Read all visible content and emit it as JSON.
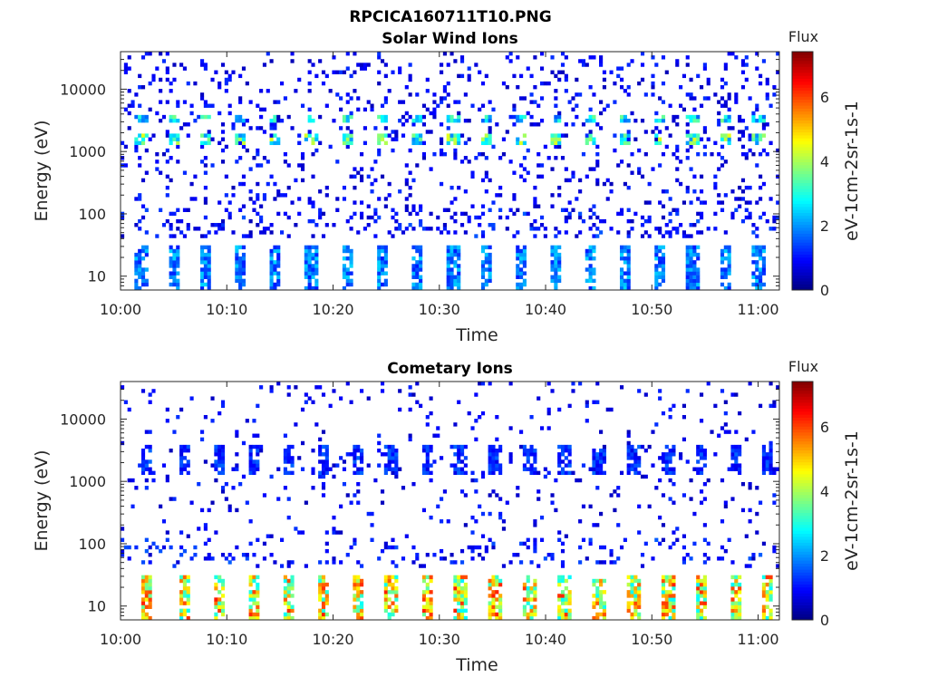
{
  "figure_title": "RPCICA160711T10.PNG",
  "chart_data": [
    {
      "type": "heatmap",
      "title": "Solar Wind Ions",
      "xlabel": "Time",
      "ylabel": "Energy (eV)",
      "x_ticks": [
        "10:00",
        "10:10",
        "10:20",
        "10:30",
        "10:40",
        "10:50",
        "11:00"
      ],
      "y_ticks": [
        10,
        100,
        1000,
        10000
      ],
      "y_scale": "log",
      "ylim": [
        6,
        40000
      ],
      "xlim_minutes": [
        0,
        62
      ],
      "colorbar": {
        "title": "Flux",
        "label": "eV-1cm-2sr-1s-1",
        "ticks": [
          0,
          2,
          4,
          6
        ],
        "range": [
          0,
          7.4
        ]
      },
      "pattern": {
        "energy_bands": [
          {
            "energy_min": 6,
            "energy_max": 30,
            "level": 1.8
          },
          {
            "energy_min": 1200,
            "energy_max": 2000,
            "level": 3.2
          },
          {
            "energy_min": 2800,
            "energy_max": 4000,
            "level": 2.6
          }
        ],
        "burst_times_min": [
          2,
          5,
          8,
          11.3,
          14.5,
          18,
          21.3,
          24.7,
          28,
          31.3,
          34.5,
          37.7,
          41,
          44.2,
          47.5,
          50.7,
          53.8,
          57,
          60
        ],
        "background_level": 1.0
      }
    },
    {
      "type": "heatmap",
      "title": "Cometary Ions",
      "xlabel": "Time",
      "ylabel": "Energy (eV)",
      "x_ticks": [
        "10:00",
        "10:10",
        "10:20",
        "10:30",
        "10:40",
        "10:50",
        "11:00"
      ],
      "y_ticks": [
        10,
        100,
        1000,
        10000
      ],
      "y_scale": "log",
      "ylim": [
        6,
        40000
      ],
      "xlim_minutes": [
        0,
        62
      ],
      "colorbar": {
        "title": "Flux",
        "label": "eV-1cm-2sr-1s-1",
        "ticks": [
          0,
          2,
          4,
          6
        ],
        "range": [
          0,
          7.4
        ]
      },
      "pattern": {
        "energy_bands": [
          {
            "energy_min": 6,
            "energy_max": 30,
            "level": 4.5
          },
          {
            "energy_min": 1200,
            "energy_max": 4000,
            "level": 1.2
          }
        ],
        "burst_times_min": [
          2.5,
          6,
          9.3,
          12.5,
          15.8,
          19,
          22.3,
          25.5,
          28.8,
          32,
          35.3,
          38.5,
          41.8,
          45,
          48.3,
          51.5,
          54.7,
          58,
          60.8
        ],
        "background_level": 1.0
      }
    }
  ]
}
